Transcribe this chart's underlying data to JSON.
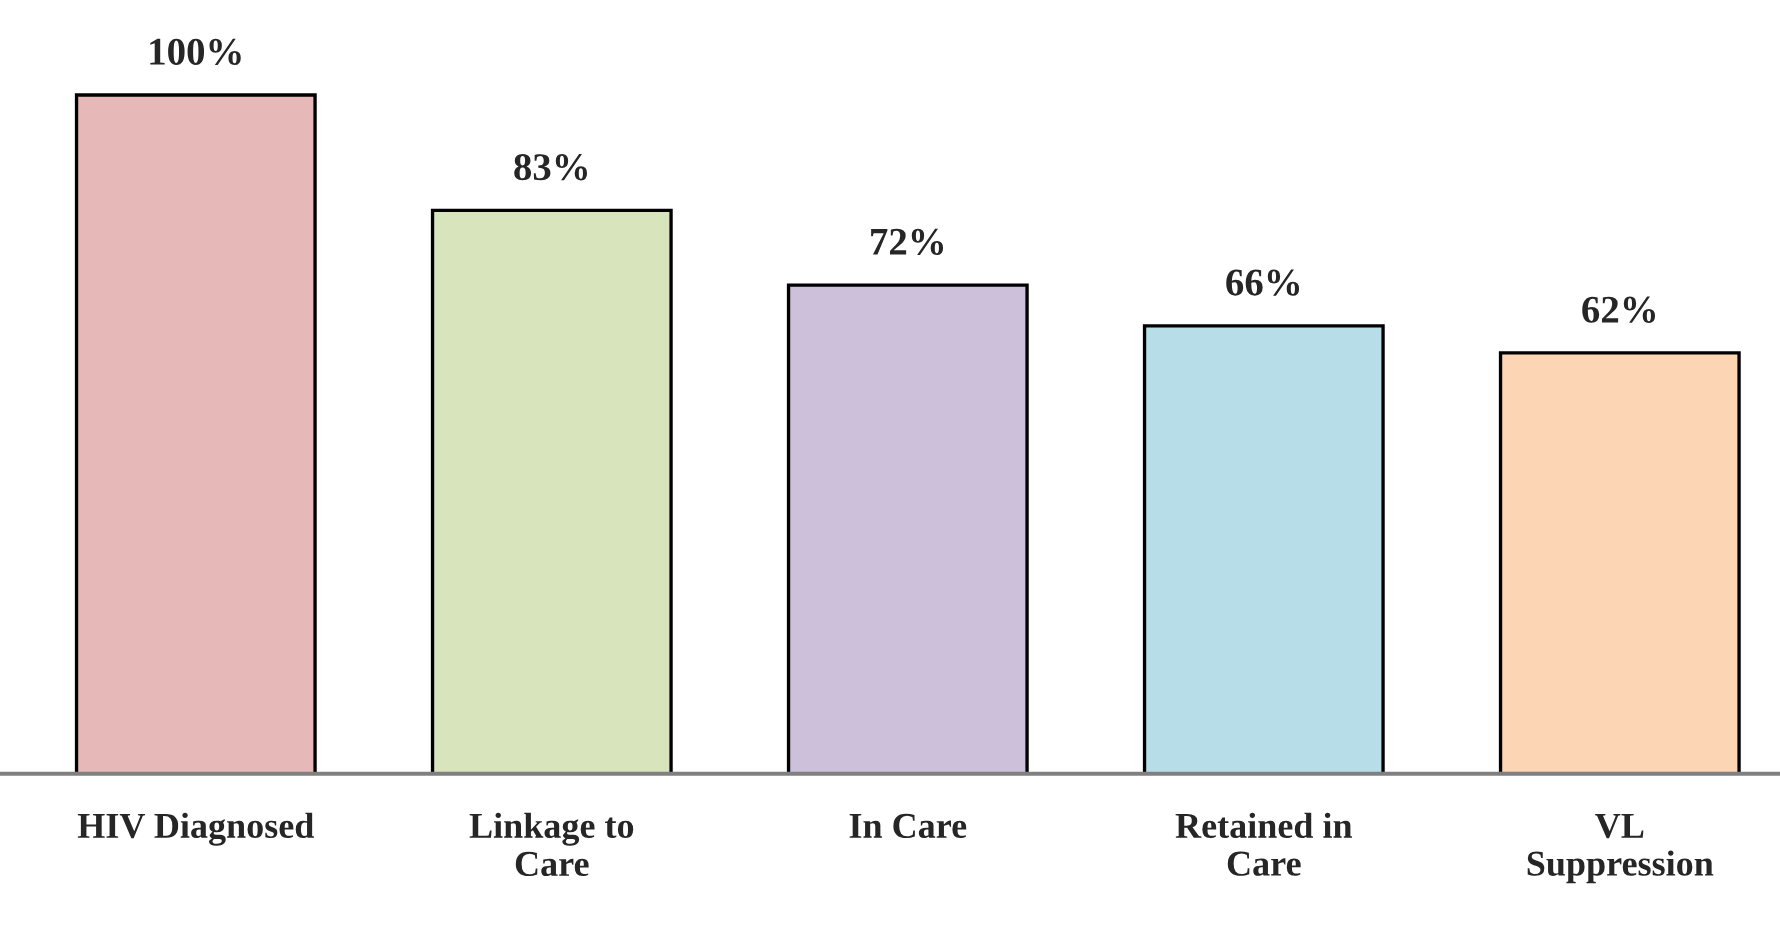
{
  "chart_data": {
    "type": "bar",
    "categories": [
      "HIV Diagnosed",
      "Linkage to\nCare",
      "In Care",
      "Retained in\nCare",
      "VL\nSuppression"
    ],
    "values": [
      100,
      83,
      72,
      66,
      62
    ],
    "value_labels": [
      "100%",
      "83%",
      "72%",
      "66%",
      "62%"
    ],
    "colors": [
      "#e6b8b7",
      "#d8e4bc",
      "#ccc0da",
      "#b7dee8",
      "#fcd5b4"
    ],
    "grid": false,
    "legend": false
  }
}
